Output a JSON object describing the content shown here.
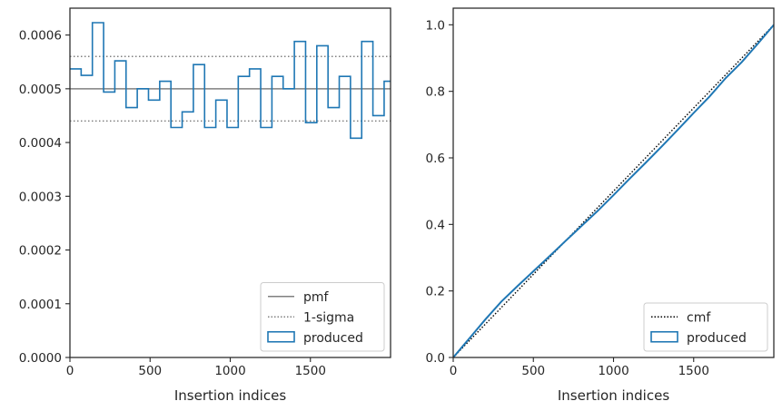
{
  "colors": {
    "produced": "#1f77b4",
    "pmf_line": "#808080",
    "sigma_line": "#808080",
    "cmf_line": "#000000",
    "axes": "#262626"
  },
  "chart_data": [
    {
      "type": "histogram-step",
      "xlabel": "Insertion indices",
      "ylabel": "",
      "title": "",
      "xlim": [
        0,
        2000
      ],
      "ylim": [
        0,
        0.00065
      ],
      "xticks": [
        0,
        500,
        1000,
        1500
      ],
      "xtick_labels": [
        "0",
        "500",
        "1000",
        "1500"
      ],
      "yticks": [
        0,
        0.0001,
        0.0002,
        0.0003,
        0.0004,
        0.0005,
        0.0006
      ],
      "ytick_labels": [
        "0.0000",
        "0.0001",
        "0.0002",
        "0.0003",
        "0.0004",
        "0.0005",
        "0.0006"
      ],
      "bin_edges": [
        0,
        70,
        140,
        210,
        280,
        350,
        420,
        490,
        560,
        630,
        700,
        770,
        840,
        910,
        980,
        1050,
        1120,
        1190,
        1260,
        1330,
        1400,
        1470,
        1540,
        1610,
        1680,
        1750,
        1820,
        1890,
        1960,
        2000
      ],
      "series": [
        {
          "name": "produced",
          "values": [
            0.000537,
            0.000525,
            0.000623,
            0.000494,
            0.000552,
            0.000465,
            0.0005,
            0.000479,
            0.000514,
            0.000428,
            0.000457,
            0.000545,
            0.000428,
            0.000479,
            0.000428,
            0.000523,
            0.000537,
            0.000428,
            0.000523,
            0.0005,
            0.000588,
            0.000437,
            0.00058,
            0.000465,
            0.000523,
            0.000408,
            0.000588,
            0.00045,
            0.000514
          ]
        }
      ],
      "reference_lines": [
        {
          "name": "pmf",
          "y": 0.0005,
          "style": "solid"
        },
        {
          "name": "1-sigma",
          "y": 0.00056,
          "style": "dotted"
        },
        {
          "name": "1-sigma",
          "y": 0.00044,
          "style": "dotted"
        }
      ],
      "legend": {
        "placement": "lower-right",
        "entries": [
          {
            "label": "pmf",
            "kind": "solid-line"
          },
          {
            "label": "1-sigma",
            "kind": "dotted-line"
          },
          {
            "label": "produced",
            "kind": "patch"
          }
        ]
      },
      "grid": false
    },
    {
      "type": "cumulative-step",
      "xlabel": "Insertion indices",
      "ylabel": "",
      "title": "",
      "xlim": [
        0,
        2000
      ],
      "ylim": [
        0,
        1.05
      ],
      "xticks": [
        0,
        500,
        1000,
        1500
      ],
      "xtick_labels": [
        "0",
        "500",
        "1000",
        "1500"
      ],
      "yticks": [
        0,
        0.2,
        0.4,
        0.6,
        0.8,
        1.0
      ],
      "ytick_labels": [
        "0.0",
        "0.2",
        "0.4",
        "0.6",
        "0.8",
        "1.0"
      ],
      "cmf": {
        "name": "cmf",
        "x": [
          0,
          2000
        ],
        "y": [
          0,
          1.0
        ],
        "style": "dotted"
      },
      "series": [
        {
          "name": "produced",
          "x": [
            0,
            100,
            200,
            300,
            400,
            500,
            600,
            700,
            800,
            900,
            1000,
            1100,
            1200,
            1300,
            1400,
            1500,
            1600,
            1700,
            1800,
            1900,
            2000
          ],
          "y": [
            0,
            0.057,
            0.114,
            0.168,
            0.214,
            0.259,
            0.304,
            0.35,
            0.395,
            0.44,
            0.488,
            0.537,
            0.585,
            0.634,
            0.684,
            0.735,
            0.785,
            0.84,
            0.888,
            0.943,
            1.0
          ]
        }
      ],
      "legend": {
        "placement": "lower-right",
        "entries": [
          {
            "label": "cmf",
            "kind": "dotted-line"
          },
          {
            "label": "produced",
            "kind": "patch"
          }
        ]
      },
      "grid": false
    }
  ]
}
